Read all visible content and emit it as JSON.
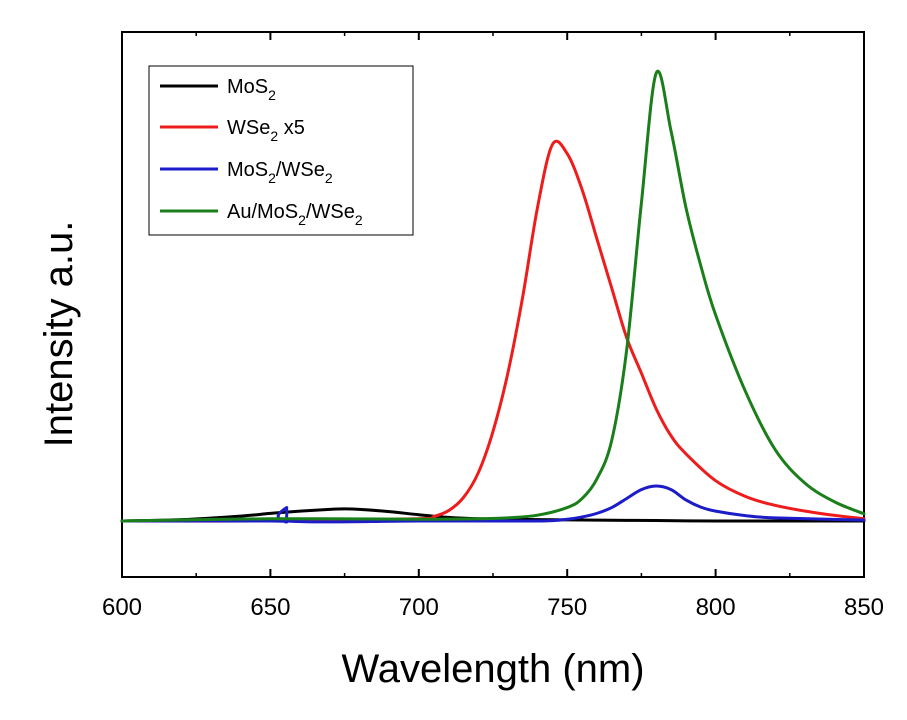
{
  "chart_data": {
    "type": "line",
    "title": "",
    "xlabel": "Wavelength (nm)",
    "ylabel": "Intensity a.u.",
    "xlim": [
      600,
      850
    ],
    "ylim": [
      -0.12,
      1.0
    ],
    "x_ticks": [
      "600",
      "650",
      "700",
      "750",
      "800",
      "850"
    ],
    "y_ticks_shown": false,
    "grid": false,
    "legend_position": "top-left",
    "series": [
      {
        "name": "MoS2",
        "name_parts": [
          "MoS",
          "2",
          ""
        ],
        "color": "#000000",
        "x": [
          600,
          620,
          640,
          650,
          660,
          670,
          675,
          680,
          690,
          700,
          710,
          720,
          740,
          760,
          780,
          800,
          820,
          850
        ],
        "y": [
          0.0,
          0.003,
          0.011,
          0.017,
          0.022,
          0.026,
          0.027,
          0.026,
          0.021,
          0.014,
          0.008,
          0.005,
          0.003,
          0.002,
          0.001,
          0.0,
          0.0,
          0.0
        ]
      },
      {
        "name": "WSe2 x5",
        "name_parts": [
          "WSe",
          "2",
          " x5"
        ],
        "color": "#ee1c1c",
        "x": [
          600,
          650,
          700,
          705,
          710,
          715,
          720,
          725,
          730,
          735,
          740,
          745,
          750,
          755,
          760,
          765,
          770,
          775,
          780,
          785,
          790,
          800,
          810,
          820,
          835,
          850
        ],
        "y": [
          0.0,
          0.0,
          0.005,
          0.01,
          0.023,
          0.052,
          0.107,
          0.2,
          0.33,
          0.5,
          0.7,
          0.84,
          0.82,
          0.74,
          0.63,
          0.52,
          0.41,
          0.33,
          0.25,
          0.19,
          0.15,
          0.09,
          0.055,
          0.035,
          0.017,
          0.005
        ]
      },
      {
        "name": "MoS2/WSe2",
        "name_parts": [
          "MoS",
          "2",
          "/WSe",
          "2"
        ],
        "color": "#1c1cc8",
        "x": [
          600,
          650,
          655,
          655.5,
          656,
          700,
          740,
          750,
          755,
          760,
          765,
          770,
          775,
          780,
          785,
          790,
          795,
          800,
          810,
          820,
          850
        ],
        "y": [
          0.0,
          0.0,
          0.0,
          0.03,
          0.0,
          0.0,
          0.0,
          0.004,
          0.009,
          0.017,
          0.03,
          0.05,
          0.07,
          0.078,
          0.07,
          0.047,
          0.031,
          0.022,
          0.012,
          0.007,
          0.002
        ]
      },
      {
        "name": "Au/MoS2/WSe2",
        "name_parts": [
          "Au/MoS",
          "2",
          "/WSe",
          "2"
        ],
        "color": "#1a7f1a",
        "x": [
          600,
          650,
          700,
          720,
          730,
          740,
          750,
          755,
          760,
          765,
          770,
          775,
          780,
          785,
          790,
          795,
          800,
          810,
          820,
          830,
          840,
          850
        ],
        "y": [
          0.0,
          0.005,
          0.004,
          0.005,
          0.007,
          0.013,
          0.03,
          0.05,
          0.094,
          0.18,
          0.38,
          0.71,
          1.0,
          0.87,
          0.7,
          0.57,
          0.46,
          0.29,
          0.16,
          0.085,
          0.043,
          0.016
        ]
      }
    ]
  }
}
